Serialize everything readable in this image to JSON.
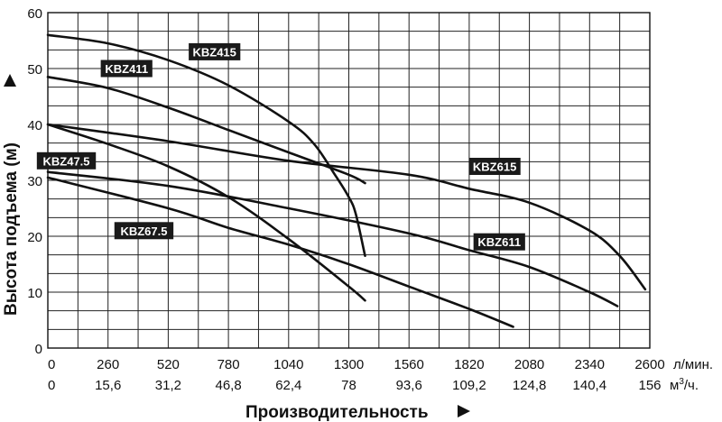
{
  "chart_data": {
    "type": "line",
    "xlabel": "Производительность",
    "ylabel": "Высота подъема (м)",
    "x_unit_primary": "л/мин.",
    "x_unit_secondary_base": "м",
    "x_unit_secondary_sup": "3",
    "x_unit_secondary_tail": "/ч.",
    "xlim": [
      0,
      2600
    ],
    "ylim": [
      0,
      60
    ],
    "grid": true,
    "x_ticks_primary": [
      "0",
      "260",
      "520",
      "780",
      "1040",
      "1300",
      "1560",
      "1820",
      "2080",
      "2340",
      "2600"
    ],
    "x_ticks_secondary": [
      "0",
      "15,6",
      "31,2",
      "46,8",
      "62,4",
      "78",
      "93,6",
      "109,2",
      "124,8",
      "140,4",
      "156"
    ],
    "y_ticks": [
      "0",
      "10",
      "20",
      "30",
      "40",
      "50",
      "60"
    ],
    "series": [
      {
        "name": "KBZ415",
        "x": [
          0,
          260,
          520,
          780,
          1040,
          1150,
          1240,
          1300,
          1330,
          1370
        ],
        "y": [
          56,
          54.5,
          51.5,
          47,
          40.5,
          36.5,
          31,
          27,
          24,
          16.5
        ]
      },
      {
        "name": "KBZ411",
        "x": [
          0,
          260,
          520,
          780,
          1040,
          1300,
          1370
        ],
        "y": [
          48.5,
          46.5,
          43,
          39,
          35,
          31,
          29.5
        ]
      },
      {
        "name": "KBZ615",
        "x": [
          0,
          520,
          1040,
          1560,
          1820,
          2080,
          2340,
          2470,
          2580
        ],
        "y": [
          40,
          37,
          33.5,
          31,
          28.5,
          26,
          21,
          16.5,
          10.5
        ]
      },
      {
        "name": "KBZ47.5",
        "x": [
          0,
          260,
          520,
          780,
          1040,
          1300,
          1370
        ],
        "y": [
          40,
          36.5,
          32.5,
          27,
          19.5,
          11,
          8.5
        ]
      },
      {
        "name": "KBZ611",
        "x": [
          0,
          520,
          1040,
          1560,
          1820,
          2080,
          2340,
          2460
        ],
        "y": [
          31.5,
          29,
          25,
          20.5,
          17.5,
          14.5,
          10,
          7.5
        ]
      },
      {
        "name": "KBZ67.5",
        "x": [
          0,
          520,
          780,
          1040,
          1300,
          1560,
          1820,
          2010
        ],
        "y": [
          30.5,
          25,
          21.5,
          18.5,
          15,
          11,
          7,
          3.8
        ]
      }
    ],
    "labels": [
      {
        "text": "KBZ415",
        "series": "KBZ415",
        "x": 720,
        "y": 53
      },
      {
        "text": "KBZ411",
        "series": "KBZ411",
        "x": 340,
        "y": 50
      },
      {
        "text": "KBZ615",
        "series": "KBZ615",
        "x": 1930,
        "y": 32.5
      },
      {
        "text": "KBZ47.5",
        "series": "KBZ47.5",
        "x": 80,
        "y": 33.5
      },
      {
        "text": "KBZ611",
        "series": "KBZ611",
        "x": 1950,
        "y": 19
      },
      {
        "text": "KBZ67.5",
        "series": "KBZ67.5",
        "x": 415,
        "y": 21
      }
    ]
  }
}
